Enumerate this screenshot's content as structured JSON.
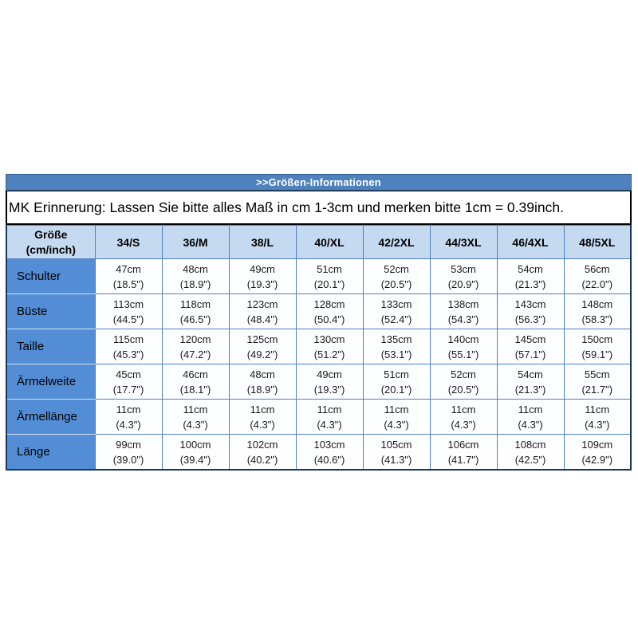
{
  "title_bar": {
    "label": ">>Größen-Informationen"
  },
  "note": {
    "text": "MK Erinnerung: Lassen Sie bitte alles Maß in cm 1-3cm und merken bitte 1cm = 0.39inch."
  },
  "table": {
    "corner_header": {
      "line1": "Größe",
      "line2": "(cm/inch)"
    },
    "size_headers": [
      "34/S",
      "36/M",
      "38/L",
      "40/XL",
      "42/2XL",
      "44/3XL",
      "46/4XL",
      "48/5XL"
    ],
    "rows": [
      {
        "label": "Schulter",
        "cells": [
          {
            "cm": "47cm",
            "inch": "(18.5\")"
          },
          {
            "cm": "48cm",
            "inch": "(18.9\")"
          },
          {
            "cm": "49cm",
            "inch": "(19.3\")"
          },
          {
            "cm": "51cm",
            "inch": "(20.1\")"
          },
          {
            "cm": "52cm",
            "inch": "(20.5\")"
          },
          {
            "cm": "53cm",
            "inch": "(20.9\")"
          },
          {
            "cm": "54cm",
            "inch": "(21.3\")"
          },
          {
            "cm": "56cm",
            "inch": "(22.0\")"
          }
        ]
      },
      {
        "label": "Büste",
        "cells": [
          {
            "cm": "113cm",
            "inch": "(44.5\")"
          },
          {
            "cm": "118cm",
            "inch": "(46.5\")"
          },
          {
            "cm": "123cm",
            "inch": "(48.4\")"
          },
          {
            "cm": "128cm",
            "inch": "(50.4\")"
          },
          {
            "cm": "133cm",
            "inch": "(52.4\")"
          },
          {
            "cm": "138cm",
            "inch": "(54.3\")"
          },
          {
            "cm": "143cm",
            "inch": "(56.3\")"
          },
          {
            "cm": "148cm",
            "inch": "(58.3\")"
          }
        ]
      },
      {
        "label": "Taille",
        "cells": [
          {
            "cm": "115cm",
            "inch": "(45.3\")"
          },
          {
            "cm": "120cm",
            "inch": "(47.2\")"
          },
          {
            "cm": "125cm",
            "inch": "(49.2\")"
          },
          {
            "cm": "130cm",
            "inch": "(51.2\")"
          },
          {
            "cm": "135cm",
            "inch": "(53.1\")"
          },
          {
            "cm": "140cm",
            "inch": "(55.1\")"
          },
          {
            "cm": "145cm",
            "inch": "(57.1\")"
          },
          {
            "cm": "150cm",
            "inch": "(59.1\")"
          }
        ]
      },
      {
        "label": "Ärmelweite",
        "cells": [
          {
            "cm": "45cm",
            "inch": "(17.7\")"
          },
          {
            "cm": "46cm",
            "inch": "(18.1\")"
          },
          {
            "cm": "48cm",
            "inch": "(18.9\")"
          },
          {
            "cm": "49cm",
            "inch": "(19.3\")"
          },
          {
            "cm": "51cm",
            "inch": "(20.1\")"
          },
          {
            "cm": "52cm",
            "inch": "(20.5\")"
          },
          {
            "cm": "54cm",
            "inch": "(21.3\")"
          },
          {
            "cm": "55cm",
            "inch": "(21.7\")"
          }
        ]
      },
      {
        "label": "Ärmellänge",
        "cells": [
          {
            "cm": "11cm",
            "inch": "(4.3\")"
          },
          {
            "cm": "11cm",
            "inch": "(4.3\")"
          },
          {
            "cm": "11cm",
            "inch": "(4.3\")"
          },
          {
            "cm": "11cm",
            "inch": "(4.3\")"
          },
          {
            "cm": "11cm",
            "inch": "(4.3\")"
          },
          {
            "cm": "11cm",
            "inch": "(4.3\")"
          },
          {
            "cm": "11cm",
            "inch": "(4.3\")"
          },
          {
            "cm": "11cm",
            "inch": "(4.3\")"
          }
        ]
      },
      {
        "label": "Länge",
        "cells": [
          {
            "cm": "99cm",
            "inch": "(39.0\")"
          },
          {
            "cm": "100cm",
            "inch": "(39.4\")"
          },
          {
            "cm": "102cm",
            "inch": "(40.2\")"
          },
          {
            "cm": "103cm",
            "inch": "(40.6\")"
          },
          {
            "cm": "105cm",
            "inch": "(41.3\")"
          },
          {
            "cm": "106cm",
            "inch": "(41.7\")"
          },
          {
            "cm": "108cm",
            "inch": "(42.5\")"
          },
          {
            "cm": "109cm",
            "inch": "(42.9\")"
          }
        ]
      }
    ]
  },
  "colors": {
    "title_bar_bg": "#4F81BD",
    "title_bar_text": "#FFFFFF",
    "header_row_bg": "#C5D9F1",
    "row_label_bg": "#538DD5",
    "cell_border": "#4F81BD",
    "outer_border": "#17375E",
    "note_border": "#000000"
  }
}
